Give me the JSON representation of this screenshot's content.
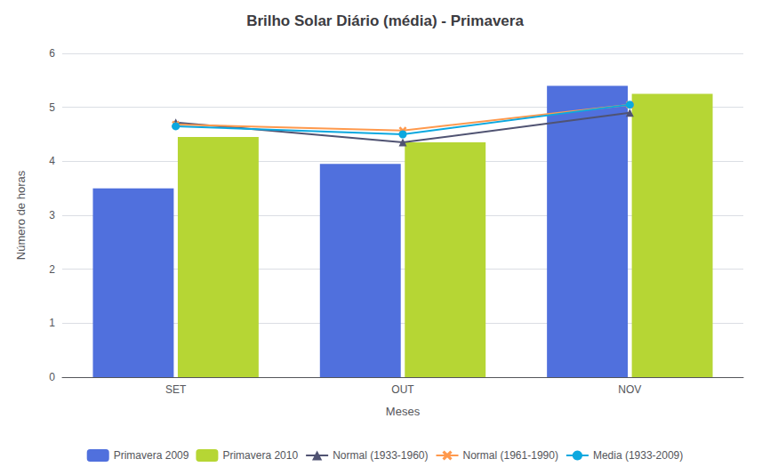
{
  "chart_data": {
    "type": "bar",
    "title": "Brilho Solar Diário (média) - Primavera",
    "xlabel": "Meses",
    "ylabel": "Número de horas",
    "categories": [
      "SET",
      "OUT",
      "NOV"
    ],
    "series": [
      {
        "name": "Primavera 2009",
        "type": "bar",
        "values": [
          3.5,
          3.95,
          5.4
        ]
      },
      {
        "name": "Primavera 2010",
        "type": "bar",
        "values": [
          4.45,
          4.35,
          5.25
        ]
      },
      {
        "name": "Normal (1933-1960)",
        "type": "line",
        "marker": "triangle",
        "values": [
          4.72,
          4.35,
          4.9
        ]
      },
      {
        "name": "Normal (1961-1990)",
        "type": "line",
        "marker": "x",
        "values": [
          4.68,
          4.57,
          5.05
        ]
      },
      {
        "name": "Media (1933-2009)",
        "type": "line",
        "marker": "circle",
        "values": [
          4.65,
          4.5,
          5.05
        ]
      }
    ],
    "ylim": [
      0,
      6
    ],
    "yticks": [
      0,
      1,
      2,
      3,
      4,
      5,
      6
    ],
    "grid": true,
    "legend": "bottom"
  }
}
